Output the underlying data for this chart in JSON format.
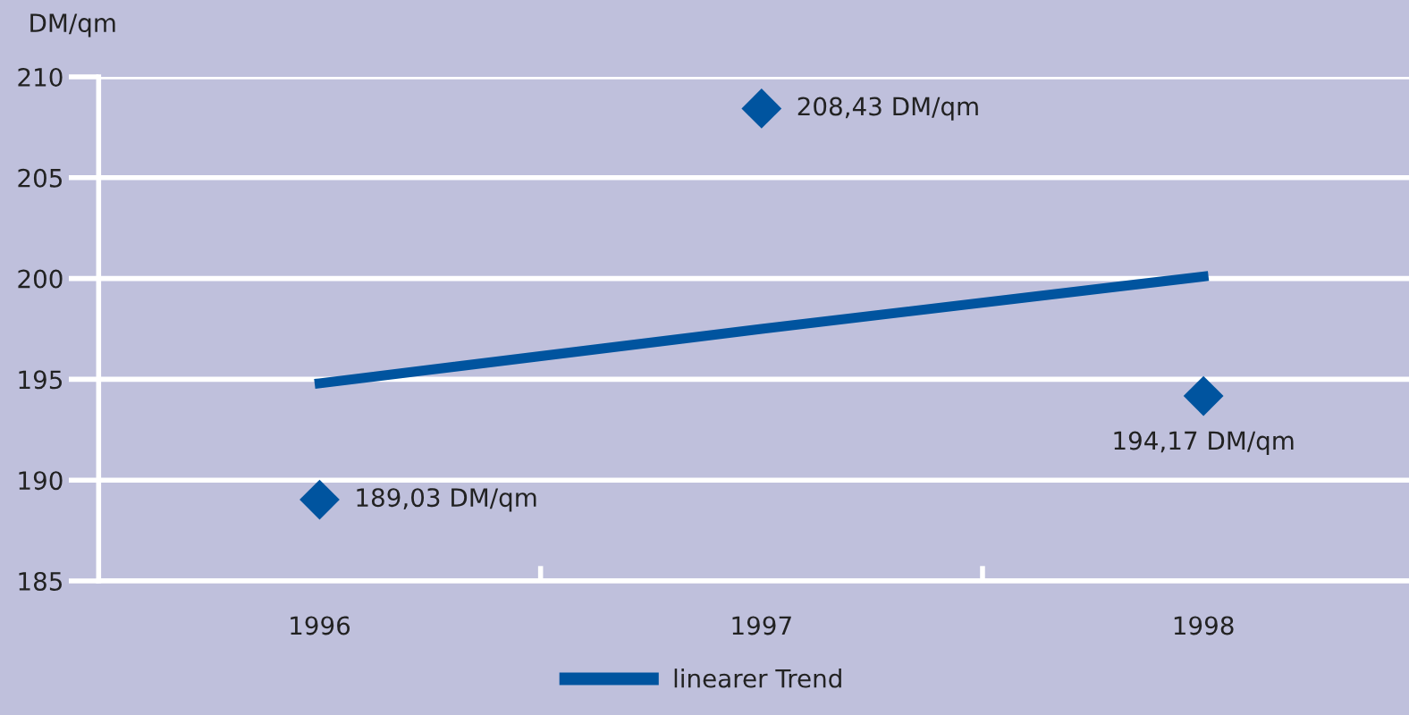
{
  "chart_data": {
    "type": "scatter",
    "ylabel": "DM/qm",
    "categories": [
      "1996",
      "1997",
      "1998"
    ],
    "series": [
      {
        "color": "#00549f",
        "marker": "diamond",
        "values": [
          189.03,
          208.43,
          194.17
        ],
        "value_labels": [
          "189,03 DM/qm",
          "208,43 DM/qm",
          "194,17 DM/qm"
        ]
      },
      {
        "type": "line",
        "name": "linearer Trend",
        "color": "#00549f",
        "values": [
          194.8,
          197.5,
          200.1
        ]
      }
    ],
    "ylim": [
      185,
      210
    ],
    "yticks": [
      185,
      190,
      195,
      200,
      205,
      210
    ],
    "grid": "y",
    "legend": "bottom"
  }
}
